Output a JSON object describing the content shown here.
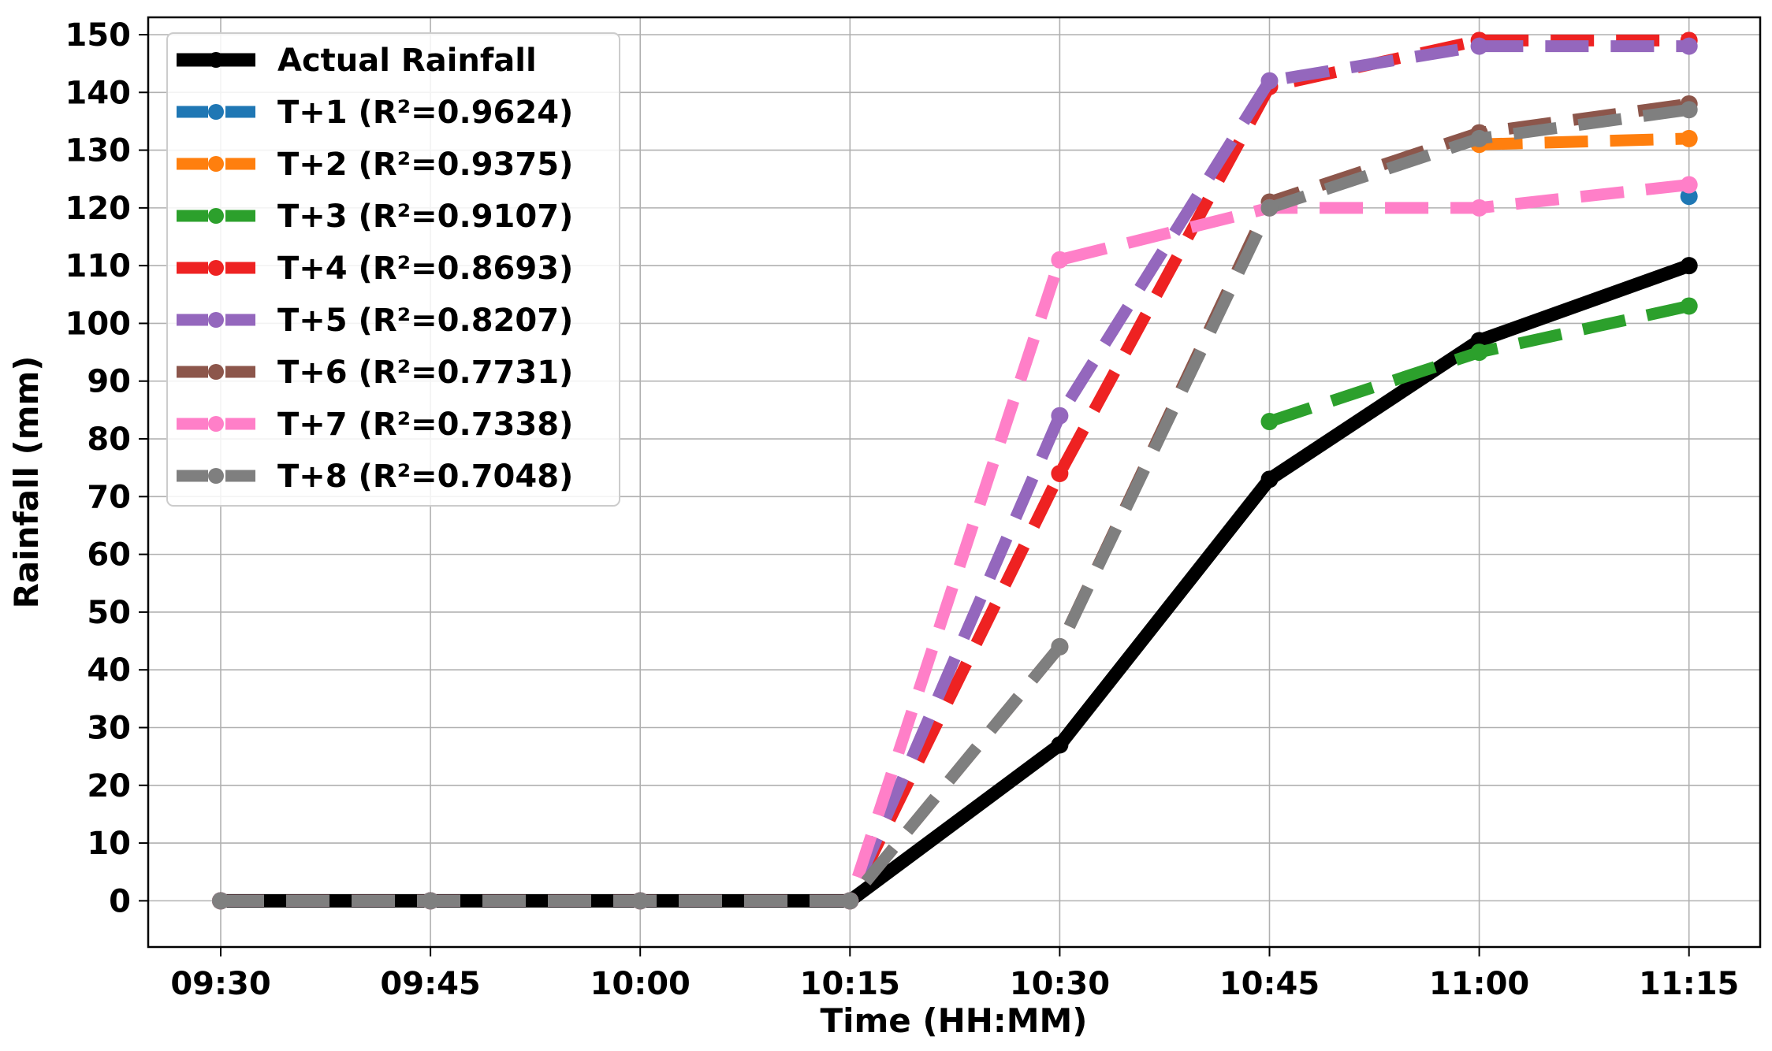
{
  "chart_data": {
    "type": "line",
    "title": "",
    "xlabel": "Time (HH:MM)",
    "ylabel": "Rainfall (mm)",
    "x": [
      "09:30",
      "09:45",
      "10:00",
      "10:15",
      "10:30",
      "10:45",
      "11:00",
      "11:15"
    ],
    "xlim": [
      "09:30",
      "11:15"
    ],
    "ylim": [
      -8,
      153
    ],
    "yticks": [
      0,
      10,
      20,
      30,
      40,
      50,
      60,
      70,
      80,
      90,
      100,
      110,
      120,
      130,
      140,
      150
    ],
    "grid": true,
    "legend_position": "top-left",
    "series": [
      {
        "name": "Actual Rainfall",
        "color": "#000000",
        "style": "solid",
        "values": [
          0,
          0,
          0,
          0,
          27,
          73,
          97,
          110
        ]
      },
      {
        "name": "T+1 (R²=0.9624)",
        "color": "#1f77b4",
        "style": "dashed",
        "values": [
          0,
          0,
          0,
          0,
          null,
          null,
          null,
          122
        ]
      },
      {
        "name": "T+2 (R²=0.9375)",
        "color": "#ff7f0e",
        "style": "dashed",
        "values": [
          0,
          0,
          0,
          0,
          null,
          null,
          131,
          132
        ]
      },
      {
        "name": "T+3 (R²=0.9107)",
        "color": "#2ca02c",
        "style": "dashed",
        "values": [
          0,
          0,
          0,
          0,
          null,
          83,
          95,
          103
        ]
      },
      {
        "name": "T+4 (R²=0.8693)",
        "color": "#ee2222",
        "style": "dashed",
        "values": [
          0,
          0,
          0,
          0,
          74,
          141,
          149,
          149
        ]
      },
      {
        "name": "T+5 (R²=0.8207)",
        "color": "#9467bd",
        "style": "dashed",
        "values": [
          0,
          0,
          0,
          0,
          84,
          142,
          148,
          148
        ]
      },
      {
        "name": "T+6 (R²=0.7731)",
        "color": "#8c564b",
        "style": "dashed",
        "values": [
          0,
          0,
          0,
          0,
          44,
          121,
          133,
          138
        ]
      },
      {
        "name": "T+7 (R²=0.7338)",
        "color": "#ff7fc8",
        "style": "dashed",
        "values": [
          0,
          0,
          0,
          0,
          111,
          120,
          120,
          124
        ]
      },
      {
        "name": "T+8 (R²=0.7048)",
        "color": "#7f7f7f",
        "style": "dashed",
        "values": [
          0,
          0,
          0,
          0,
          44,
          120,
          132,
          137
        ]
      }
    ]
  }
}
